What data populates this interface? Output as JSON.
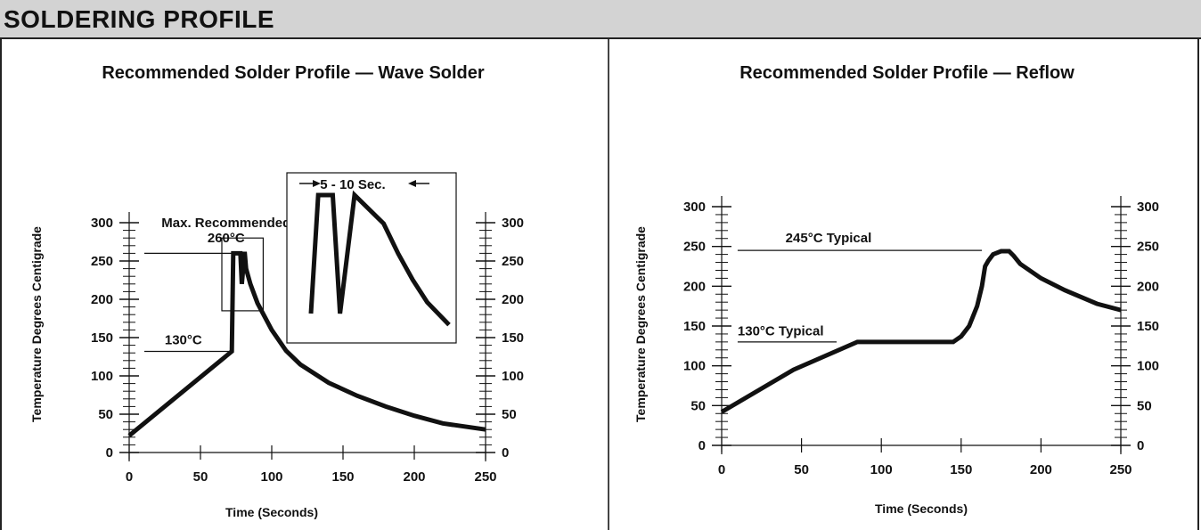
{
  "header": {
    "title": "SOLDERING PROFILE"
  },
  "chart_data": [
    {
      "type": "line",
      "title": "Recommended Solder Profile — Wave Solder",
      "xlabel": "Time (Seconds)",
      "ylabel": "Temperature Degrees Centigrade",
      "xlim": [
        0,
        250
      ],
      "ylim": [
        0,
        300
      ],
      "x_ticks": [
        0,
        50,
        100,
        150,
        200,
        250
      ],
      "y_ticks": [
        0,
        50,
        100,
        150,
        200,
        250,
        300
      ],
      "y_minor_step": 10,
      "right_axis": true,
      "grid": false,
      "series": [
        {
          "x": [
            0,
            72,
            73,
            75,
            78,
            79,
            81,
            82,
            85,
            90,
            100,
            110,
            120,
            140,
            160,
            180,
            200,
            220,
            250
          ],
          "y": [
            22,
            132,
            260,
            260,
            260,
            220,
            262,
            240,
            220,
            195,
            160,
            133,
            115,
            91,
            74,
            60,
            48,
            38,
            30
          ]
        }
      ],
      "annotations": [
        {
          "text": "Max. Recommended",
          "x": 68,
          "y": 300
        },
        {
          "text": "260°C",
          "x": 68,
          "y": 280
        },
        {
          "text": "130°C",
          "x": 38,
          "y": 147
        }
      ],
      "inset": {
        "label": "5 - 10 Sec.",
        "series": {
          "x": [
            0,
            5,
            15,
            20,
            30,
            50,
            60,
            70,
            80,
            95
          ],
          "y": [
            180,
            338,
            338,
            180,
            338,
            300,
            260,
            225,
            195,
            165
          ]
        }
      }
    },
    {
      "type": "line",
      "title": "Recommended Solder Profile — Reflow",
      "xlabel": "Time (Seconds)",
      "ylabel": "Temperature Degrees Centigrade",
      "xlim": [
        0,
        250
      ],
      "ylim": [
        0,
        300
      ],
      "x_ticks": [
        0,
        50,
        100,
        150,
        200,
        250
      ],
      "y_ticks": [
        0,
        50,
        100,
        150,
        200,
        250,
        300
      ],
      "y_minor_step": 10,
      "right_axis": true,
      "grid": false,
      "series": [
        {
          "x": [
            0,
            45,
            85,
            88,
            145,
            150,
            155,
            160,
            163,
            165,
            167,
            170,
            175,
            180,
            183,
            187,
            200,
            215,
            235,
            250
          ],
          "y": [
            42,
            95,
            130,
            130,
            130,
            137,
            150,
            175,
            200,
            225,
            232,
            240,
            244,
            244,
            238,
            228,
            210,
            195,
            178,
            170
          ]
        }
      ],
      "annotations": [
        {
          "text": "245°C Typical",
          "x": 40,
          "y": 255
        },
        {
          "text": "130°C Typical",
          "x": 10,
          "y": 138
        }
      ]
    }
  ]
}
